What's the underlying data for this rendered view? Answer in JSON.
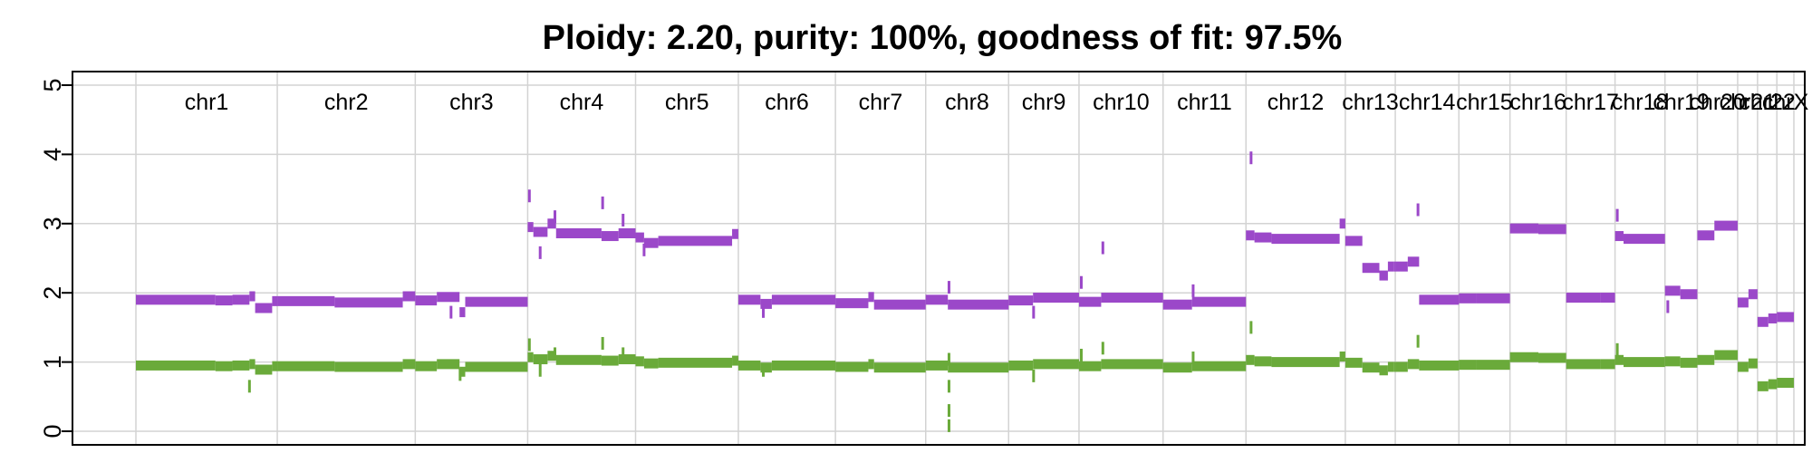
{
  "chart_data": {
    "type": "scatter",
    "title": "Ploidy: 2.20, purity: 100%, goodness of fit: 97.5%",
    "ylim": [
      0,
      5
    ],
    "yticks": [
      0,
      1,
      2,
      3,
      4,
      5
    ],
    "grid": true,
    "chromosomes": [
      {
        "name": "chr1",
        "start": 0,
        "end": 249
      },
      {
        "name": "chr2",
        "start": 249,
        "end": 492
      },
      {
        "name": "chr3",
        "start": 492,
        "end": 690
      },
      {
        "name": "chr4",
        "start": 690,
        "end": 880
      },
      {
        "name": "chr5",
        "start": 880,
        "end": 1061
      },
      {
        "name": "chr6",
        "start": 1061,
        "end": 1232
      },
      {
        "name": "chr7",
        "start": 1232,
        "end": 1391
      },
      {
        "name": "chr8",
        "start": 1391,
        "end": 1537
      },
      {
        "name": "chr9",
        "start": 1537,
        "end": 1661
      },
      {
        "name": "chr10",
        "start": 1661,
        "end": 1809
      },
      {
        "name": "chr11",
        "start": 1809,
        "end": 1955
      },
      {
        "name": "chr12",
        "start": 1955,
        "end": 2130
      },
      {
        "name": "chr13",
        "start": 2130,
        "end": 2218
      },
      {
        "name": "chr14",
        "start": 2218,
        "end": 2330
      },
      {
        "name": "chr15",
        "start": 2330,
        "end": 2420
      },
      {
        "name": "chr16",
        "start": 2420,
        "end": 2519
      },
      {
        "name": "chr17",
        "start": 2519,
        "end": 2605
      },
      {
        "name": "chr18",
        "start": 2605,
        "end": 2693
      },
      {
        "name": "chr19",
        "start": 2693,
        "end": 2750
      },
      {
        "name": "chr20",
        "start": 2750,
        "end": 2821
      },
      {
        "name": "chr21",
        "start": 2821,
        "end": 2856
      },
      {
        "name": "chr22",
        "start": 2856,
        "end": 2890
      },
      {
        "name": "chrX",
        "start": 2890,
        "end": 2920
      }
    ],
    "series": [
      {
        "color": "#9b48c9",
        "segments": [
          [
            0,
            140,
            1.9
          ],
          [
            140,
            170,
            1.89
          ],
          [
            170,
            200,
            1.9
          ],
          [
            200,
            210,
            1.95
          ],
          [
            210,
            240,
            1.78
          ],
          [
            240,
            249,
            1.88
          ],
          [
            249,
            350,
            1.88
          ],
          [
            350,
            470,
            1.86
          ],
          [
            470,
            492,
            1.95
          ],
          [
            492,
            530,
            1.89
          ],
          [
            530,
            570,
            1.94
          ],
          [
            570,
            580,
            1.72
          ],
          [
            580,
            690,
            1.87
          ],
          [
            690,
            700,
            2.95
          ],
          [
            700,
            725,
            2.88
          ],
          [
            725,
            740,
            3.0
          ],
          [
            740,
            820,
            2.86
          ],
          [
            820,
            850,
            2.82
          ],
          [
            850,
            880,
            2.86
          ],
          [
            880,
            895,
            2.8
          ],
          [
            895,
            920,
            2.72
          ],
          [
            920,
            1050,
            2.75
          ],
          [
            1050,
            1061,
            2.85
          ],
          [
            1061,
            1100,
            1.9
          ],
          [
            1100,
            1120,
            1.84
          ],
          [
            1120,
            1232,
            1.9
          ],
          [
            1232,
            1290,
            1.85
          ],
          [
            1290,
            1300,
            1.94
          ],
          [
            1300,
            1391,
            1.83
          ],
          [
            1391,
            1430,
            1.9
          ],
          [
            1430,
            1537,
            1.83
          ],
          [
            1537,
            1580,
            1.89
          ],
          [
            1580,
            1661,
            1.93
          ],
          [
            1661,
            1700,
            1.87
          ],
          [
            1700,
            1809,
            1.93
          ],
          [
            1809,
            1860,
            1.83
          ],
          [
            1860,
            1955,
            1.87
          ],
          [
            1955,
            1970,
            2.83
          ],
          [
            1970,
            2000,
            2.8
          ],
          [
            2000,
            2120,
            2.78
          ],
          [
            2120,
            2130,
            3.0
          ],
          [
            2130,
            2160,
            2.75
          ],
          [
            2160,
            2190,
            2.36
          ],
          [
            2190,
            2205,
            2.25
          ],
          [
            2205,
            2215,
            2.38
          ],
          [
            2215,
            2218,
            2.38
          ],
          [
            2218,
            2240,
            2.38
          ],
          [
            2240,
            2260,
            2.45
          ],
          [
            2260,
            2330,
            1.9
          ],
          [
            2330,
            2360,
            1.92
          ],
          [
            2360,
            2420,
            1.92
          ],
          [
            2420,
            2470,
            2.93
          ],
          [
            2470,
            2519,
            2.92
          ],
          [
            2519,
            2580,
            1.93
          ],
          [
            2580,
            2605,
            1.93
          ],
          [
            2605,
            2620,
            2.82
          ],
          [
            2620,
            2693,
            2.78
          ],
          [
            2693,
            2720,
            2.03
          ],
          [
            2720,
            2750,
            1.98
          ],
          [
            2750,
            2780,
            2.83
          ],
          [
            2780,
            2821,
            2.97
          ],
          [
            2821,
            2840,
            1.86
          ],
          [
            2840,
            2856,
            1.98
          ],
          [
            2856,
            2875,
            1.58
          ],
          [
            2875,
            2890,
            1.63
          ],
          [
            2890,
            2920,
            1.65
          ]
        ]
      },
      {
        "color": "#6aaa3a",
        "segments": [
          [
            0,
            140,
            0.95
          ],
          [
            140,
            170,
            0.94
          ],
          [
            170,
            200,
            0.95
          ],
          [
            200,
            210,
            0.97
          ],
          [
            210,
            240,
            0.89
          ],
          [
            240,
            249,
            0.94
          ],
          [
            249,
            350,
            0.94
          ],
          [
            350,
            470,
            0.93
          ],
          [
            470,
            492,
            0.97
          ],
          [
            492,
            530,
            0.94
          ],
          [
            530,
            570,
            0.97
          ],
          [
            570,
            580,
            0.86
          ],
          [
            580,
            690,
            0.93
          ],
          [
            690,
            700,
            1.07
          ],
          [
            700,
            725,
            1.04
          ],
          [
            725,
            740,
            1.09
          ],
          [
            740,
            820,
            1.03
          ],
          [
            820,
            850,
            1.02
          ],
          [
            850,
            880,
            1.04
          ],
          [
            880,
            895,
            1.01
          ],
          [
            895,
            920,
            0.98
          ],
          [
            920,
            1050,
            0.99
          ],
          [
            1050,
            1061,
            1.02
          ],
          [
            1061,
            1100,
            0.95
          ],
          [
            1100,
            1120,
            0.92
          ],
          [
            1120,
            1232,
            0.95
          ],
          [
            1232,
            1290,
            0.93
          ],
          [
            1290,
            1300,
            0.97
          ],
          [
            1300,
            1391,
            0.92
          ],
          [
            1391,
            1430,
            0.95
          ],
          [
            1430,
            1537,
            0.92
          ],
          [
            1537,
            1580,
            0.95
          ],
          [
            1580,
            1661,
            0.97
          ],
          [
            1661,
            1700,
            0.94
          ],
          [
            1700,
            1809,
            0.97
          ],
          [
            1809,
            1860,
            0.92
          ],
          [
            1860,
            1955,
            0.94
          ],
          [
            1955,
            1970,
            1.03
          ],
          [
            1970,
            2000,
            1.01
          ],
          [
            2000,
            2120,
            1.0
          ],
          [
            2120,
            2130,
            1.08
          ],
          [
            2130,
            2160,
            0.99
          ],
          [
            2160,
            2190,
            0.92
          ],
          [
            2190,
            2205,
            0.88
          ],
          [
            2205,
            2215,
            0.93
          ],
          [
            2215,
            2218,
            0.93
          ],
          [
            2218,
            2240,
            0.93
          ],
          [
            2240,
            2260,
            0.97
          ],
          [
            2260,
            2330,
            0.95
          ],
          [
            2330,
            2360,
            0.96
          ],
          [
            2360,
            2420,
            0.96
          ],
          [
            2420,
            2470,
            1.07
          ],
          [
            2470,
            2519,
            1.06
          ],
          [
            2519,
            2580,
            0.97
          ],
          [
            2580,
            2605,
            0.97
          ],
          [
            2605,
            2620,
            1.03
          ],
          [
            2620,
            2693,
            1.0
          ],
          [
            2693,
            2720,
            1.01
          ],
          [
            2720,
            2750,
            0.99
          ],
          [
            2750,
            2780,
            1.03
          ],
          [
            2780,
            2821,
            1.1
          ],
          [
            2821,
            2840,
            0.93
          ],
          [
            2840,
            2856,
            0.98
          ],
          [
            2856,
            2875,
            0.65
          ],
          [
            2875,
            2890,
            0.68
          ],
          [
            2890,
            2920,
            0.7
          ]
        ]
      }
    ],
    "outliers": [
      {
        "x": 200,
        "y": 0.65,
        "s": 1
      },
      {
        "x": 555,
        "y": 1.72,
        "s": 0
      },
      {
        "x": 571,
        "y": 0.82,
        "s": 1
      },
      {
        "x": 693,
        "y": 3.4,
        "s": 0
      },
      {
        "x": 693,
        "y": 1.25,
        "s": 1
      },
      {
        "x": 712,
        "y": 2.58,
        "s": 0
      },
      {
        "x": 712,
        "y": 0.88,
        "s": 1
      },
      {
        "x": 738,
        "y": 3.1,
        "s": 0
      },
      {
        "x": 738,
        "y": 1.12,
        "s": 1
      },
      {
        "x": 822,
        "y": 3.3,
        "s": 0
      },
      {
        "x": 822,
        "y": 1.27,
        "s": 1
      },
      {
        "x": 858,
        "y": 3.05,
        "s": 0
      },
      {
        "x": 858,
        "y": 1.12,
        "s": 1
      },
      {
        "x": 895,
        "y": 2.62,
        "s": 0
      },
      {
        "x": 1105,
        "y": 1.73,
        "s": 0
      },
      {
        "x": 1105,
        "y": 0.88,
        "s": 1
      },
      {
        "x": 1432,
        "y": 2.08,
        "s": 0
      },
      {
        "x": 1432,
        "y": 1.04,
        "s": 1
      },
      {
        "x": 1432,
        "y": 0.65,
        "s": 1
      },
      {
        "x": 1432,
        "y": 0.08,
        "s": 1
      },
      {
        "x": 1432,
        "y": 0.3,
        "s": 1
      },
      {
        "x": 1581,
        "y": 1.72,
        "s": 0
      },
      {
        "x": 1581,
        "y": 0.8,
        "s": 1
      },
      {
        "x": 1665,
        "y": 2.15,
        "s": 0
      },
      {
        "x": 1665,
        "y": 1.1,
        "s": 1
      },
      {
        "x": 1703,
        "y": 2.65,
        "s": 0
      },
      {
        "x": 1703,
        "y": 1.2,
        "s": 1
      },
      {
        "x": 1862,
        "y": 2.03,
        "s": 0
      },
      {
        "x": 1862,
        "y": 1.06,
        "s": 1
      },
      {
        "x": 1964,
        "y": 3.95,
        "s": 0
      },
      {
        "x": 1964,
        "y": 1.5,
        "s": 1
      },
      {
        "x": 2258,
        "y": 3.2,
        "s": 0
      },
      {
        "x": 2258,
        "y": 1.3,
        "s": 1
      },
      {
        "x": 2609,
        "y": 3.12,
        "s": 0
      },
      {
        "x": 2609,
        "y": 1.18,
        "s": 1
      },
      {
        "x": 2698,
        "y": 1.8,
        "s": 0
      }
    ]
  }
}
